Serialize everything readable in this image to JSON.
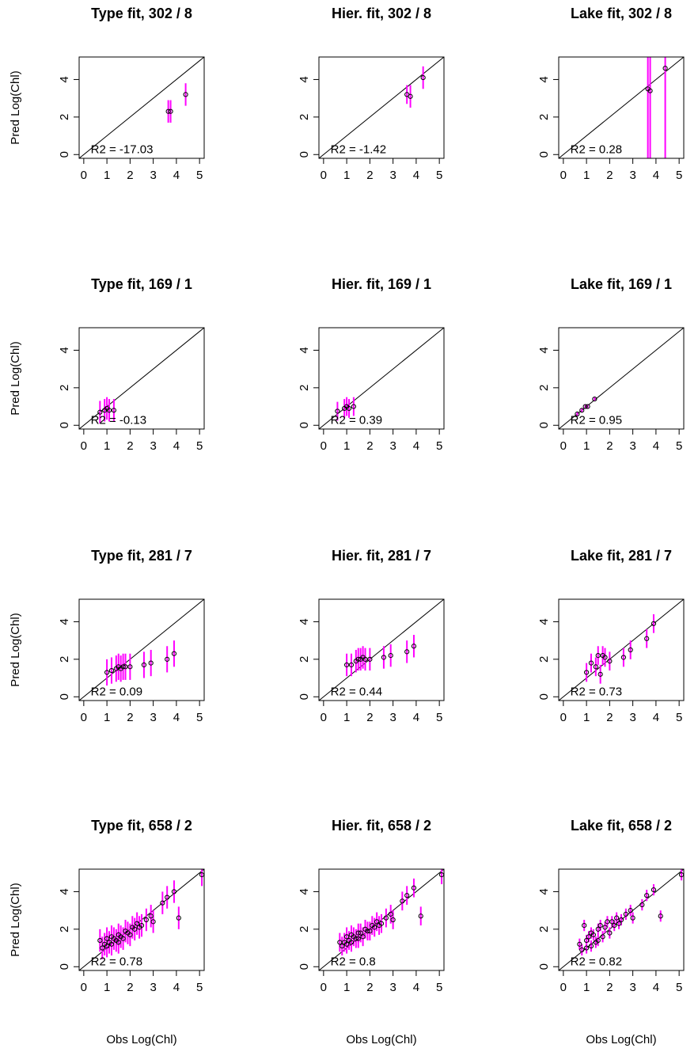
{
  "chart_data": [
    {
      "type": "scatter",
      "title": "Type fit,  302 / 8",
      "annotation": "R2 =  -17.03",
      "ylabel": "Pred Log(Chl)",
      "x": [
        3.65,
        3.75,
        4.4
      ],
      "values": [
        2.3,
        2.3,
        3.2
      ],
      "errors": [
        0.6,
        0.6,
        0.6
      ],
      "xlim": [
        -0.2,
        5.2
      ],
      "ylim": [
        -0.2,
        5.2
      ],
      "xticks": [
        0,
        1,
        2,
        3,
        4,
        5
      ],
      "yticks": [
        0,
        2,
        4
      ],
      "color": "#000000",
      "error_color": "#ff00ff"
    },
    {
      "type": "scatter",
      "title": "Hier. fit,  302 / 8",
      "annotation": "R2 =  -1.42",
      "x": [
        3.6,
        3.75,
        4.3
      ],
      "values": [
        3.2,
        3.1,
        4.1
      ],
      "errors": [
        0.5,
        0.6,
        0.6
      ],
      "xlim": [
        -0.2,
        5.2
      ],
      "ylim": [
        -0.2,
        5.2
      ],
      "xticks": [
        0,
        1,
        2,
        3,
        4,
        5
      ],
      "yticks": [
        0,
        2,
        4
      ],
      "color": "#000000",
      "error_color": "#ff00ff"
    },
    {
      "type": "scatter",
      "title": "Lake fit,  302 / 8",
      "annotation": "R2 =  0.28",
      "x": [
        3.65,
        3.75,
        4.4
      ],
      "values": [
        3.5,
        3.4,
        4.6
      ],
      "errors": [
        6,
        6,
        6
      ],
      "xlim": [
        -0.2,
        5.2
      ],
      "ylim": [
        -0.2,
        5.2
      ],
      "xticks": [
        0,
        1,
        2,
        3,
        4,
        5
      ],
      "yticks": [
        0,
        2,
        4
      ],
      "color": "#000000",
      "error_color": "#ff00ff"
    },
    {
      "type": "scatter",
      "title": "Type fit,  169 / 1",
      "annotation": "R2 =  -0.13",
      "ylabel": "Pred Log(Chl)",
      "x": [
        0.7,
        0.9,
        1.0,
        1.1,
        1.3
      ],
      "values": [
        0.7,
        0.8,
        0.9,
        0.8,
        0.8
      ],
      "errors": [
        0.6,
        0.6,
        0.6,
        0.6,
        0.6
      ],
      "xlim": [
        -0.2,
        5.2
      ],
      "ylim": [
        -0.2,
        5.2
      ],
      "xticks": [
        0,
        1,
        2,
        3,
        4,
        5
      ],
      "yticks": [
        0,
        2,
        4
      ],
      "color": "#000000",
      "error_color": "#ff00ff"
    },
    {
      "type": "scatter",
      "title": "Hier. fit,  169 / 1",
      "annotation": "R2 =  0.39",
      "x": [
        0.6,
        0.9,
        1.0,
        1.1,
        1.3
      ],
      "values": [
        0.75,
        0.9,
        1.0,
        0.9,
        1.0
      ],
      "errors": [
        0.5,
        0.5,
        0.5,
        0.5,
        0.5
      ],
      "xlim": [
        -0.2,
        5.2
      ],
      "ylim": [
        -0.2,
        5.2
      ],
      "xticks": [
        0,
        1,
        2,
        3,
        4,
        5
      ],
      "yticks": [
        0,
        2,
        4
      ],
      "color": "#000000",
      "error_color": "#ff00ff"
    },
    {
      "type": "scatter",
      "title": "Lake fit,  169 / 1",
      "annotation": "R2 =  0.95",
      "x": [
        0.6,
        0.8,
        0.95,
        1.05,
        1.35
      ],
      "values": [
        0.6,
        0.8,
        1.0,
        1.0,
        1.4
      ],
      "errors": [
        0.1,
        0.1,
        0.1,
        0.1,
        0.1
      ],
      "xlim": [
        -0.2,
        5.2
      ],
      "ylim": [
        -0.2,
        5.2
      ],
      "xticks": [
        0,
        1,
        2,
        3,
        4,
        5
      ],
      "yticks": [
        0,
        2,
        4
      ],
      "color": "#000000",
      "error_color": "#ff00ff"
    },
    {
      "type": "scatter",
      "title": "Type fit,  281 / 7",
      "annotation": "R2 =  0.09",
      "ylabel": "Pred Log(Chl)",
      "x": [
        1.0,
        1.2,
        1.4,
        1.5,
        1.6,
        1.7,
        1.8,
        2.0,
        2.6,
        2.9,
        3.6,
        3.9
      ],
      "values": [
        1.3,
        1.4,
        1.5,
        1.6,
        1.5,
        1.6,
        1.6,
        1.6,
        1.7,
        1.8,
        2.0,
        2.3
      ],
      "errors": [
        0.7,
        0.7,
        0.7,
        0.7,
        0.7,
        0.7,
        0.7,
        0.7,
        0.7,
        0.7,
        0.7,
        0.7
      ],
      "xlim": [
        -0.2,
        5.2
      ],
      "ylim": [
        -0.2,
        5.2
      ],
      "xticks": [
        0,
        1,
        2,
        3,
        4,
        5
      ],
      "yticks": [
        0,
        2,
        4
      ],
      "color": "#000000",
      "error_color": "#ff00ff"
    },
    {
      "type": "scatter",
      "title": "Hier. fit,  281 / 7",
      "annotation": "R2 =  0.44",
      "x": [
        1.0,
        1.2,
        1.4,
        1.5,
        1.6,
        1.7,
        1.8,
        2.0,
        2.6,
        2.9,
        3.6,
        3.9
      ],
      "values": [
        1.7,
        1.7,
        1.9,
        2.0,
        2.0,
        2.1,
        2.0,
        2.0,
        2.1,
        2.2,
        2.4,
        2.7
      ],
      "errors": [
        0.6,
        0.6,
        0.6,
        0.6,
        0.6,
        0.6,
        0.6,
        0.6,
        0.6,
        0.6,
        0.6,
        0.6
      ],
      "xlim": [
        -0.2,
        5.2
      ],
      "ylim": [
        -0.2,
        5.2
      ],
      "xticks": [
        0,
        1,
        2,
        3,
        4,
        5
      ],
      "yticks": [
        0,
        2,
        4
      ],
      "color": "#000000",
      "error_color": "#ff00ff"
    },
    {
      "type": "scatter",
      "title": "Lake fit,  281 / 7",
      "annotation": "R2 =  0.73",
      "x": [
        1.0,
        1.2,
        1.4,
        1.5,
        1.6,
        1.7,
        1.8,
        2.0,
        2.6,
        2.9,
        3.6,
        3.9
      ],
      "values": [
        1.3,
        1.8,
        1.6,
        2.2,
        1.2,
        2.2,
        2.1,
        1.9,
        2.1,
        2.5,
        3.1,
        3.9
      ],
      "errors": [
        0.5,
        0.5,
        0.5,
        0.5,
        0.5,
        0.5,
        0.5,
        0.5,
        0.5,
        0.5,
        0.5,
        0.5
      ],
      "xlim": [
        -0.2,
        5.2
      ],
      "ylim": [
        -0.2,
        5.2
      ],
      "xticks": [
        0,
        1,
        2,
        3,
        4,
        5
      ],
      "yticks": [
        0,
        2,
        4
      ],
      "color": "#000000",
      "error_color": "#ff00ff"
    },
    {
      "type": "scatter",
      "title": "Type fit,  658 / 2",
      "annotation": "R2 =  0.78",
      "ylabel": "Pred Log(Chl)",
      "xlabel": "Obs Log(Chl)",
      "x": [
        0.7,
        0.8,
        0.9,
        1.0,
        1.0,
        1.1,
        1.2,
        1.2,
        1.3,
        1.4,
        1.5,
        1.5,
        1.6,
        1.7,
        1.8,
        1.9,
        2.0,
        2.1,
        2.2,
        2.3,
        2.4,
        2.5,
        2.7,
        2.9,
        3.0,
        3.4,
        3.6,
        3.9,
        4.1,
        5.1
      ],
      "values": [
        1.4,
        1.0,
        1.2,
        1.5,
        1.1,
        1.3,
        1.6,
        1.2,
        1.5,
        1.4,
        1.7,
        1.3,
        1.6,
        1.5,
        1.9,
        1.8,
        1.7,
        2.1,
        2.0,
        2.3,
        2.1,
        2.2,
        2.5,
        2.7,
        2.4,
        3.4,
        3.7,
        4.0,
        2.6,
        4.9
      ],
      "errors": [
        0.6,
        0.6,
        0.6,
        0.6,
        0.6,
        0.6,
        0.6,
        0.6,
        0.6,
        0.6,
        0.6,
        0.6,
        0.6,
        0.6,
        0.6,
        0.6,
        0.6,
        0.6,
        0.6,
        0.6,
        0.6,
        0.6,
        0.6,
        0.6,
        0.6,
        0.6,
        0.6,
        0.6,
        0.6,
        0.6
      ],
      "xlim": [
        -0.2,
        5.2
      ],
      "ylim": [
        -0.2,
        5.2
      ],
      "xticks": [
        0,
        1,
        2,
        3,
        4,
        5
      ],
      "yticks": [
        0,
        2,
        4
      ],
      "color": "#000000",
      "error_color": "#ff00ff"
    },
    {
      "type": "scatter",
      "title": "Hier. fit,  658 / 2",
      "annotation": "R2 =  0.8",
      "xlabel": "Obs Log(Chl)",
      "x": [
        0.7,
        0.8,
        0.9,
        1.0,
        1.0,
        1.1,
        1.2,
        1.2,
        1.3,
        1.4,
        1.5,
        1.5,
        1.6,
        1.7,
        1.8,
        1.9,
        2.0,
        2.1,
        2.2,
        2.3,
        2.4,
        2.5,
        2.7,
        2.9,
        3.0,
        3.4,
        3.6,
        3.9,
        4.2,
        5.1
      ],
      "values": [
        1.3,
        1.1,
        1.3,
        1.6,
        1.2,
        1.4,
        1.7,
        1.3,
        1.6,
        1.5,
        1.8,
        1.5,
        1.8,
        1.6,
        2.0,
        1.9,
        1.9,
        2.2,
        2.1,
        2.4,
        2.2,
        2.3,
        2.6,
        2.8,
        2.5,
        3.5,
        3.8,
        4.2,
        2.7,
        4.9
      ],
      "errors": [
        0.5,
        0.5,
        0.5,
        0.5,
        0.5,
        0.5,
        0.5,
        0.5,
        0.5,
        0.5,
        0.5,
        0.5,
        0.5,
        0.5,
        0.5,
        0.5,
        0.5,
        0.5,
        0.5,
        0.5,
        0.5,
        0.5,
        0.5,
        0.5,
        0.5,
        0.5,
        0.5,
        0.5,
        0.5,
        0.5
      ],
      "xlim": [
        -0.2,
        5.2
      ],
      "ylim": [
        -0.2,
        5.2
      ],
      "xticks": [
        0,
        1,
        2,
        3,
        4,
        5
      ],
      "yticks": [
        0,
        2,
        4
      ],
      "color": "#000000",
      "error_color": "#ff00ff"
    },
    {
      "type": "scatter",
      "title": "Lake fit,  658 / 2",
      "annotation": "R2 =  0.82",
      "xlabel": "Obs Log(Chl)",
      "x": [
        0.7,
        0.8,
        0.9,
        1.0,
        1.0,
        1.1,
        1.2,
        1.2,
        1.3,
        1.4,
        1.5,
        1.5,
        1.6,
        1.7,
        1.8,
        1.9,
        2.0,
        2.1,
        2.2,
        2.3,
        2.4,
        2.5,
        2.7,
        2.9,
        3.0,
        3.4,
        3.6,
        3.9,
        4.2,
        5.1
      ],
      "values": [
        1.2,
        0.9,
        2.2,
        1.4,
        1.0,
        1.6,
        1.8,
        1.1,
        1.7,
        1.3,
        2.0,
        1.4,
        2.2,
        1.6,
        2.1,
        2.4,
        1.8,
        2.4,
        2.2,
        2.6,
        2.3,
        2.5,
        2.8,
        3.0,
        2.6,
        3.3,
        3.8,
        4.1,
        2.7,
        4.9
      ],
      "errors": [
        0.3,
        0.3,
        0.3,
        0.3,
        0.3,
        0.3,
        0.3,
        0.3,
        0.3,
        0.3,
        0.3,
        0.3,
        0.3,
        0.3,
        0.3,
        0.3,
        0.3,
        0.3,
        0.3,
        0.3,
        0.3,
        0.3,
        0.3,
        0.3,
        0.3,
        0.3,
        0.3,
        0.3,
        0.3,
        0.3
      ],
      "xlim": [
        -0.2,
        5.2
      ],
      "ylim": [
        -0.2,
        5.2
      ],
      "xticks": [
        0,
        1,
        2,
        3,
        4,
        5
      ],
      "yticks": [
        0,
        2,
        4
      ],
      "color": "#000000",
      "error_color": "#ff00ff"
    }
  ]
}
